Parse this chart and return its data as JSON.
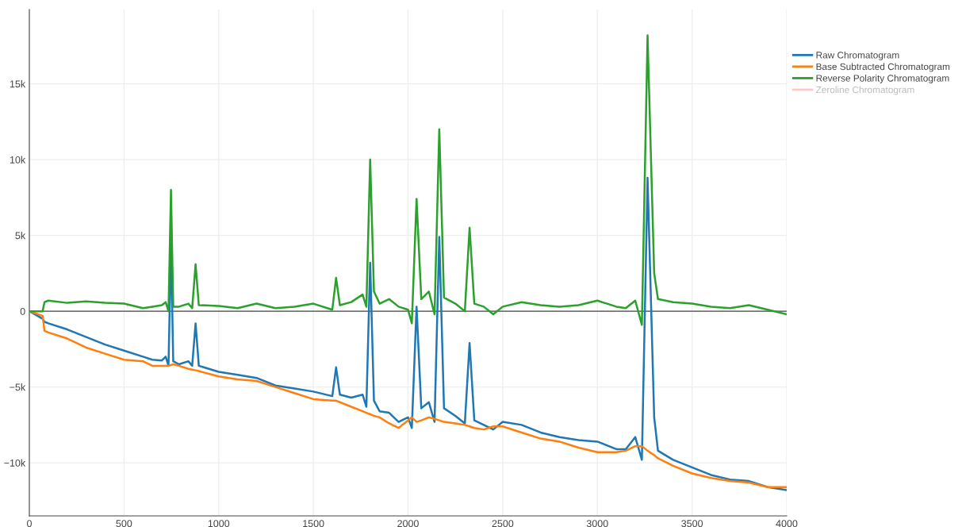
{
  "chart_data": {
    "type": "line",
    "x": [
      0,
      70,
      80,
      100,
      200,
      300,
      400,
      500,
      600,
      650,
      700,
      720,
      735,
      748,
      760,
      790,
      840,
      860,
      878,
      895,
      1000,
      1100,
      1200,
      1300,
      1400,
      1500,
      1600,
      1620,
      1640,
      1700,
      1760,
      1780,
      1800,
      1820,
      1850,
      1900,
      1950,
      2000,
      2020,
      2045,
      2070,
      2110,
      2140,
      2165,
      2190,
      2250,
      2300,
      2325,
      2350,
      2400,
      2450,
      2500,
      2600,
      2700,
      2800,
      2900,
      3000,
      3100,
      3150,
      3200,
      3235,
      3265,
      3300,
      3320,
      3400,
      3500,
      3600,
      3700,
      3800,
      3900,
      4000
    ],
    "series": [
      {
        "name": "Raw Chromatogram",
        "color": "#1f77b4",
        "values": [
          0,
          -500,
          -700,
          -800,
          -1200,
          -1700,
          -2200,
          -2600,
          -3000,
          -3200,
          -3250,
          -3000,
          -3600,
          4500,
          -3300,
          -3500,
          -3300,
          -3600,
          -800,
          -3600,
          -4000,
          -4200,
          -4400,
          -4900,
          -5100,
          -5300,
          -5600,
          -3700,
          -5500,
          -5700,
          -5500,
          -6300,
          3200,
          -5900,
          -6600,
          -6700,
          -7300,
          -7000,
          -7700,
          300,
          -6400,
          -6000,
          -7300,
          4900,
          -6400,
          -6900,
          -7400,
          -2100,
          -7200,
          -7500,
          -7800,
          -7300,
          -7500,
          -8000,
          -8300,
          -8500,
          -8600,
          -9100,
          -9100,
          -8300,
          -9800,
          8800,
          -7000,
          -9200,
          -9800,
          -10300,
          -10800,
          -11100,
          -11200,
          -11600,
          -11800
        ]
      },
      {
        "name": "Base Subtracted Chromatogram",
        "color": "#ff7f0e",
        "values": [
          0,
          -300,
          -1300,
          -1400,
          -1800,
          -2400,
          -2800,
          -3200,
          -3300,
          -3600,
          -3600,
          -3600,
          -3600,
          -3550,
          -3500,
          -3600,
          -3800,
          -3850,
          -3900,
          -3950,
          -4300,
          -4500,
          -4600,
          -5000,
          -5400,
          -5800,
          -5900,
          -5900,
          -6000,
          -6300,
          -6600,
          -6700,
          -6800,
          -6900,
          -7000,
          -7400,
          -7700,
          -7200,
          -7000,
          -7300,
          -7200,
          -7000,
          -7100,
          -7200,
          -7300,
          -7400,
          -7500,
          -7600,
          -7700,
          -7800,
          -7600,
          -7600,
          -8000,
          -8400,
          -8600,
          -9000,
          -9300,
          -9300,
          -9200,
          -8900,
          -8900,
          -9200,
          -9500,
          -9700,
          -10200,
          -10700,
          -11000,
          -11200,
          -11300,
          -11600,
          -11600
        ]
      },
      {
        "name": "Reverse Polarity Chromatogram",
        "color": "#2ca02c",
        "values": [
          0,
          0,
          600,
          700,
          550,
          650,
          550,
          500,
          200,
          300,
          400,
          600,
          0,
          8000,
          300,
          300,
          500,
          200,
          3100,
          400,
          350,
          200,
          500,
          200,
          300,
          500,
          100,
          2200,
          400,
          600,
          1100,
          300,
          10000,
          1300,
          500,
          800,
          300,
          100,
          -800,
          7400,
          800,
          1300,
          -200,
          12000,
          900,
          500,
          0,
          5500,
          500,
          300,
          -200,
          300,
          600,
          400,
          300,
          400,
          700,
          300,
          200,
          700,
          -900,
          18200,
          2500,
          800,
          600,
          500,
          300,
          200,
          400,
          100,
          -200
        ]
      },
      {
        "name": "Zeroline Chromatogram",
        "color": "#f4a6a6",
        "values": [
          null,
          null,
          null,
          null,
          null,
          null,
          null,
          null,
          null,
          null,
          null,
          null,
          null,
          null,
          null,
          null,
          null,
          null,
          null,
          null,
          null,
          null,
          null,
          null,
          null,
          null,
          null,
          null,
          null,
          null,
          null,
          null,
          null,
          null,
          null,
          null,
          null,
          null,
          null,
          null,
          null,
          null,
          null,
          null,
          null,
          null,
          null,
          null,
          null,
          null,
          null,
          null,
          null,
          null,
          null,
          null,
          null,
          null,
          null,
          null,
          null,
          null,
          null,
          null,
          null,
          null,
          null,
          null,
          null,
          null,
          null
        ]
      }
    ],
    "xlim": [
      0,
      4000
    ],
    "xticks": [
      0,
      500,
      1000,
      1500,
      2000,
      2500,
      3000,
      3500,
      4000
    ],
    "ylim": [
      -13500,
      19900
    ],
    "yticks": [
      {
        "value": -10000,
        "label": "−10k"
      },
      {
        "value": -5000,
        "label": "−5k"
      },
      0,
      {
        "value": 5000,
        "label": "5k"
      },
      {
        "value": 10000,
        "label": "10k"
      },
      {
        "value": 15000,
        "label": "15k"
      }
    ],
    "ref_lines": [
      {
        "axis": "y",
        "value": 0,
        "color": "#444444"
      }
    ],
    "grid": true,
    "legend": "top right",
    "marker": "none",
    "line_style": "solid"
  }
}
